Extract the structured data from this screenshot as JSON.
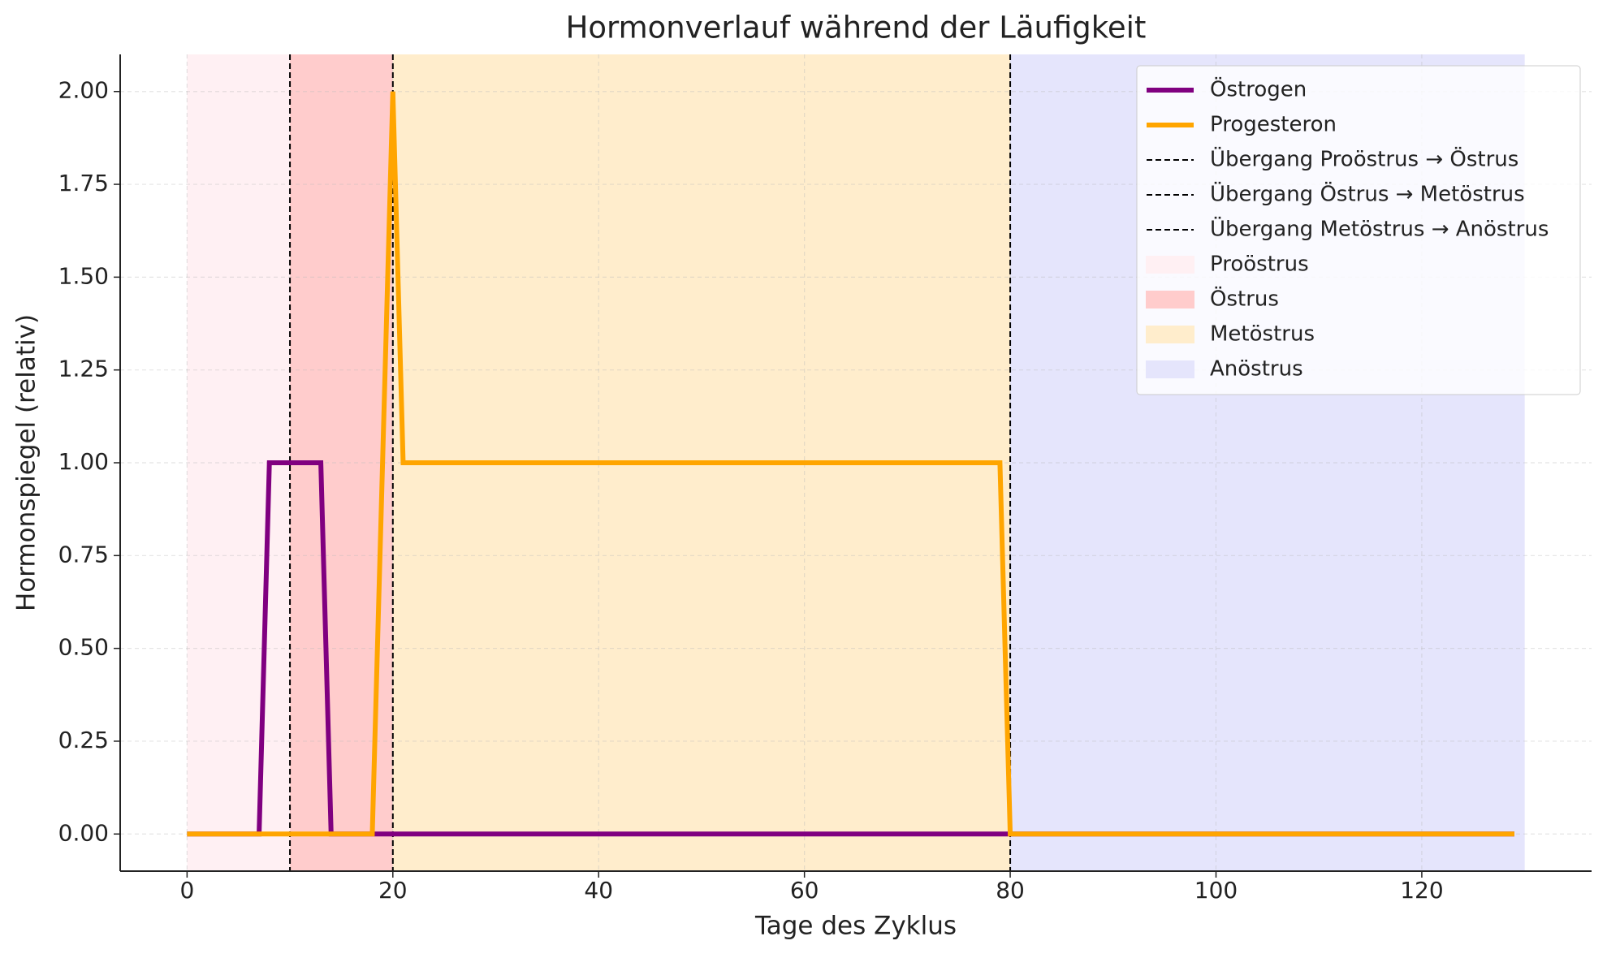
{
  "chart_data": {
    "type": "line",
    "title": "Hormonverlauf während der Läufigkeit",
    "xlabel": "Tage des Zyklus",
    "ylabel": "Hormonspiegel (relativ)",
    "series": [
      {
        "name": "Östrogen",
        "color": "#800080",
        "x": [
          0,
          7,
          8,
          13,
          14,
          129
        ],
        "values": [
          0,
          0,
          1,
          1,
          0,
          0
        ]
      },
      {
        "name": "Progesteron",
        "color": "#ffa500",
        "x": [
          0,
          18,
          20,
          21,
          79,
          80,
          129
        ],
        "values": [
          0,
          0,
          2,
          1,
          1,
          0,
          0
        ]
      }
    ],
    "vlines": [
      {
        "name": "Übergang Proöstrus → Östrus",
        "x": 10,
        "color": "#000000"
      },
      {
        "name": "Übergang Östrus → Metöstrus",
        "x": 20,
        "color": "#000000"
      },
      {
        "name": "Übergang Metöstrus → Anöstrus",
        "x": 80,
        "color": "#000000"
      }
    ],
    "spans": [
      {
        "name": "Proöstrus",
        "start": 0,
        "end": 10,
        "color": "#fff0f3"
      },
      {
        "name": "Östrus",
        "start": 10,
        "end": 20,
        "color": "#ffcccc"
      },
      {
        "name": "Metöstrus",
        "start": 20,
        "end": 80,
        "color": "#ffedcc"
      },
      {
        "name": "Anöstrus",
        "start": 80,
        "end": 130,
        "color": "#e5e5fc"
      }
    ],
    "xlim": [
      -6.5,
      136.5
    ],
    "ylim": [
      -0.1,
      2.1
    ],
    "xticks": [
      0,
      20,
      40,
      60,
      80,
      100,
      120
    ],
    "yticks": [
      {
        "value": 0,
        "label": "0.00"
      },
      {
        "value": 0.25,
        "label": "0.25"
      },
      {
        "value": 0.5,
        "label": "0.50"
      },
      {
        "value": 0.75,
        "label": "0.75"
      },
      {
        "value": 1,
        "label": "1.00"
      },
      {
        "value": 1.25,
        "label": "1.25"
      },
      {
        "value": 1.5,
        "label": "1.50"
      },
      {
        "value": 1.75,
        "label": "1.75"
      },
      {
        "value": 2,
        "label": "2.00"
      }
    ],
    "grid": true,
    "legend": "upper right"
  }
}
